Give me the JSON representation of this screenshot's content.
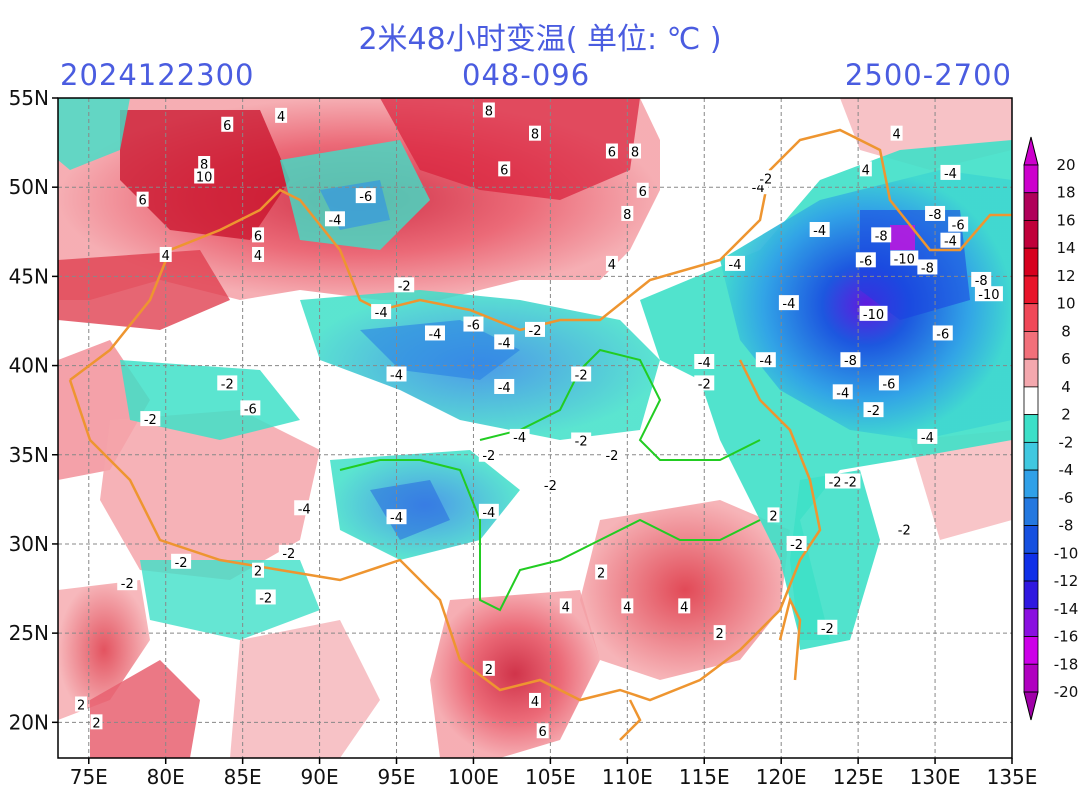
{
  "header": {
    "title": "2米48小时变温( 单位: ℃ )",
    "init_time": "2024122300",
    "forecast_range": "048-096",
    "level_tag": "2500-2700"
  },
  "map": {
    "lon_ticks": [
      "75E",
      "80E",
      "85E",
      "90E",
      "95E",
      "100E",
      "105E",
      "110E",
      "115E",
      "120E",
      "125E",
      "130E",
      "135E"
    ],
    "lat_ticks": [
      "55N",
      "50N",
      "45N",
      "40N",
      "35N",
      "30N",
      "25N",
      "20N"
    ],
    "contour_labels": [
      {
        "text": "6",
        "lon": 84,
        "lat": 53.5
      },
      {
        "text": "4",
        "lon": 87.5,
        "lat": 54
      },
      {
        "text": "8",
        "lon": 101,
        "lat": 54.3
      },
      {
        "text": "8",
        "lon": 104,
        "lat": 53
      },
      {
        "text": "8",
        "lon": 82.5,
        "lat": 51.3
      },
      {
        "text": "10",
        "lon": 82.5,
        "lat": 50.6
      },
      {
        "text": "6",
        "lon": 78.5,
        "lat": 49.3
      },
      {
        "text": "4",
        "lon": 80,
        "lat": 46.2
      },
      {
        "text": "6",
        "lon": 86,
        "lat": 47.3
      },
      {
        "text": "4",
        "lon": 86,
        "lat": 46.2
      },
      {
        "text": "6",
        "lon": 109,
        "lat": 52
      },
      {
        "text": "8",
        "lon": 110.5,
        "lat": 52
      },
      {
        "text": "6",
        "lon": 102,
        "lat": 51
      },
      {
        "text": "6",
        "lon": 111,
        "lat": 49.8
      },
      {
        "text": "8",
        "lon": 110,
        "lat": 48.5
      },
      {
        "text": "4",
        "lon": 109,
        "lat": 45.7
      },
      {
        "text": "-6",
        "lon": 93,
        "lat": 49.5
      },
      {
        "text": "-4",
        "lon": 91,
        "lat": 48.2
      },
      {
        "text": "-2",
        "lon": 95.5,
        "lat": 44.5
      },
      {
        "text": "-4",
        "lon": 94,
        "lat": 43
      },
      {
        "text": "-6",
        "lon": 100,
        "lat": 42.3
      },
      {
        "text": "-4",
        "lon": 97.5,
        "lat": 41.8
      },
      {
        "text": "-4",
        "lon": 102,
        "lat": 41.3
      },
      {
        "text": "-2",
        "lon": 104,
        "lat": 42
      },
      {
        "text": "-4",
        "lon": 95,
        "lat": 39.5
      },
      {
        "text": "-4",
        "lon": 102,
        "lat": 38.8
      },
      {
        "text": "-2",
        "lon": 107,
        "lat": 39.5
      },
      {
        "text": "-6",
        "lon": 85.5,
        "lat": 37.6
      },
      {
        "text": "-2",
        "lon": 84,
        "lat": 39
      },
      {
        "text": "-2",
        "lon": 79,
        "lat": 37
      },
      {
        "text": "-2",
        "lon": 101,
        "lat": 35
      },
      {
        "text": "-4",
        "lon": 103,
        "lat": 36
      },
      {
        "text": "-2",
        "lon": 107,
        "lat": 35.8
      },
      {
        "text": "-2",
        "lon": 109,
        "lat": 35
      },
      {
        "text": "-4",
        "lon": 101,
        "lat": 31.8
      },
      {
        "text": "-4",
        "lon": 89,
        "lat": 32
      },
      {
        "text": "-4",
        "lon": 95,
        "lat": 31.5
      },
      {
        "text": "-2",
        "lon": 105,
        "lat": 33.3
      },
      {
        "text": "-4",
        "lon": 115,
        "lat": 40.2
      },
      {
        "text": "-2",
        "lon": 115,
        "lat": 39
      },
      {
        "text": "-4",
        "lon": 117,
        "lat": 45.7
      },
      {
        "text": "-4",
        "lon": 118.5,
        "lat": 50
      },
      {
        "text": "-2",
        "lon": 119,
        "lat": 50.5
      },
      {
        "text": "4",
        "lon": 125.5,
        "lat": 51
      },
      {
        "text": "4",
        "lon": 127.5,
        "lat": 53
      },
      {
        "text": "-4",
        "lon": 131,
        "lat": 50.8
      },
      {
        "text": "-4",
        "lon": 122.5,
        "lat": 47.6
      },
      {
        "text": "-8",
        "lon": 126.5,
        "lat": 47.3
      },
      {
        "text": "-6",
        "lon": 125.5,
        "lat": 45.9
      },
      {
        "text": "-10",
        "lon": 128,
        "lat": 46
      },
      {
        "text": "-8",
        "lon": 129.5,
        "lat": 45.5
      },
      {
        "text": "-8",
        "lon": 130,
        "lat": 48.5
      },
      {
        "text": "-6",
        "lon": 131.5,
        "lat": 47.9
      },
      {
        "text": "-4",
        "lon": 131,
        "lat": 47
      },
      {
        "text": "-8",
        "lon": 133,
        "lat": 44.8
      },
      {
        "text": "-10",
        "lon": 133.5,
        "lat": 44
      },
      {
        "text": "-10",
        "lon": 126,
        "lat": 42.9
      },
      {
        "text": "-6",
        "lon": 130.5,
        "lat": 41.8
      },
      {
        "text": "-4",
        "lon": 120.5,
        "lat": 43.5
      },
      {
        "text": "-8",
        "lon": 124.5,
        "lat": 40.3
      },
      {
        "text": "-4",
        "lon": 119,
        "lat": 40.3
      },
      {
        "text": "-4",
        "lon": 124,
        "lat": 38.5
      },
      {
        "text": "-6",
        "lon": 127,
        "lat": 39
      },
      {
        "text": "-4",
        "lon": 129.5,
        "lat": 36
      },
      {
        "text": "-2",
        "lon": 126,
        "lat": 37.5
      },
      {
        "text": "-2",
        "lon": 123.5,
        "lat": 33.5
      },
      {
        "text": "-2",
        "lon": 124.5,
        "lat": 33.5
      },
      {
        "text": "-2",
        "lon": 128,
        "lat": 30.8
      },
      {
        "text": "-2",
        "lon": 121,
        "lat": 30
      },
      {
        "text": "-2",
        "lon": 123,
        "lat": 25.3
      },
      {
        "text": "2",
        "lon": 119.5,
        "lat": 31.6
      },
      {
        "text": "2",
        "lon": 108.3,
        "lat": 28.4
      },
      {
        "text": "4",
        "lon": 106,
        "lat": 26.5
      },
      {
        "text": "4",
        "lon": 110,
        "lat": 26.5
      },
      {
        "text": "4",
        "lon": 113.7,
        "lat": 26.5
      },
      {
        "text": "2",
        "lon": 116,
        "lat": 25
      },
      {
        "text": "2",
        "lon": 101,
        "lat": 23
      },
      {
        "text": "4",
        "lon": 104,
        "lat": 21.2
      },
      {
        "text": "6",
        "lon": 104.5,
        "lat": 19.5
      },
      {
        "text": "2",
        "lon": 74.5,
        "lat": 21
      },
      {
        "text": "2",
        "lon": 75.5,
        "lat": 20
      },
      {
        "text": "2",
        "lon": 86,
        "lat": 28.5
      },
      {
        "text": "-2",
        "lon": 81,
        "lat": 29
      },
      {
        "text": "-2",
        "lon": 88,
        "lat": 29.5
      },
      {
        "text": "-2",
        "lon": 86.5,
        "lat": 27
      },
      {
        "text": "-2",
        "lon": 77.5,
        "lat": 27.8
      }
    ]
  },
  "colorbar": {
    "labels": [
      "20",
      "18",
      "16",
      "14",
      "12",
      "10",
      "8",
      "6",
      "4",
      "2",
      "-2",
      "-4",
      "-6",
      "-8",
      "-10",
      "-12",
      "-14",
      "-16",
      "-18",
      "-20"
    ],
    "colors": [
      "#cc00cc",
      "#b0005a",
      "#c0003a",
      "#d6001e",
      "#e8142a",
      "#f04858",
      "#f2707a",
      "#f4a8ae",
      "#ffffff",
      "#3ce0c8",
      "#40c8e0",
      "#30a0e8",
      "#2478e0",
      "#1650e0",
      "#1030e8",
      "#3018e0",
      "#8a10e0",
      "#cc00e8",
      "#b000c0"
    ]
  }
}
